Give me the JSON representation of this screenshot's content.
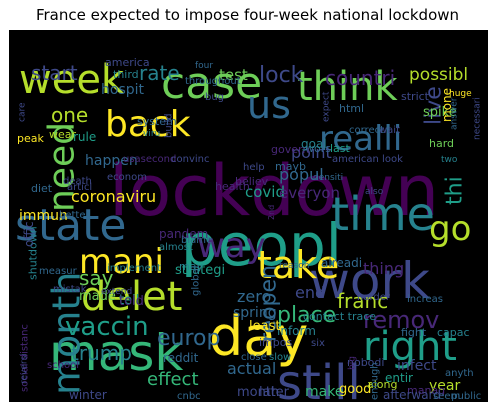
{
  "title": "France expected to impose four-week national lockdown",
  "colors": {
    "background": "#000000",
    "title_text": "#000000"
  },
  "words": [
    {
      "text": "lockdown",
      "color": "#440154"
    },
    {
      "text": "peopl",
      "color": "#1f9e89"
    },
    {
      "text": "day",
      "color": "#fde725"
    },
    {
      "text": "state",
      "color": "#31688e"
    },
    {
      "text": "week",
      "color": "#b5de2b"
    },
    {
      "text": "case",
      "color": "#6ece58"
    },
    {
      "text": "us",
      "color": "#31688e"
    },
    {
      "text": "mask",
      "color": "#35b779"
    },
    {
      "text": "work",
      "color": "#3e4989"
    },
    {
      "text": "time",
      "color": "#26828e"
    },
    {
      "text": "delet",
      "color": "#b5de2b"
    },
    {
      "text": "still",
      "color": "#3e4989"
    },
    {
      "text": "take",
      "color": "#fde725"
    },
    {
      "text": "back",
      "color": "#fde725"
    },
    {
      "text": "right",
      "color": "#1f9e89"
    },
    {
      "text": "mani",
      "color": "#fde725"
    },
    {
      "text": "way",
      "color": "#482878"
    },
    {
      "text": "month",
      "color": "#26828e"
    },
    {
      "text": "think",
      "color": "#6ece58"
    },
    {
      "text": "need",
      "color": "#6ece58"
    },
    {
      "text": "realli",
      "color": "#31688e"
    },
    {
      "text": "go",
      "color": "#b5de2b"
    },
    {
      "text": "vaccin",
      "color": "#1f9e89"
    },
    {
      "text": "remov",
      "color": "#482878"
    },
    {
      "text": "reopen",
      "color": "#31688e"
    },
    {
      "text": "trump",
      "color": "#26828e"
    },
    {
      "text": "europ",
      "color": "#31688e"
    },
    {
      "text": "say",
      "color": "#6ece58"
    },
    {
      "text": "place",
      "color": "#35b779"
    },
    {
      "text": "coronaviru",
      "color": "#fde725"
    },
    {
      "text": "lock",
      "color": "#3e4989"
    },
    {
      "text": "countri",
      "color": "#482878"
    },
    {
      "text": "start",
      "color": "#3e4989"
    },
    {
      "text": "rate",
      "color": "#26828e"
    },
    {
      "text": "test",
      "color": "#6ece58"
    },
    {
      "text": "possibl",
      "color": "#b5de2b"
    },
    {
      "text": "one",
      "color": "#b5de2b"
    },
    {
      "text": "thi",
      "color": "#1f9e89"
    },
    {
      "text": "live",
      "color": "#3e4989"
    },
    {
      "text": "effect",
      "color": "#35b779"
    },
    {
      "text": "point",
      "color": "#3e4989"
    },
    {
      "text": "popul",
      "color": "#31688e"
    },
    {
      "text": "covid",
      "color": "#1f9e89"
    },
    {
      "text": "everyon",
      "color": "#482878"
    },
    {
      "text": "zero",
      "color": "#31688e"
    },
    {
      "text": "end",
      "color": "#3e4989"
    },
    {
      "text": "franc",
      "color": "#b5de2b"
    },
    {
      "text": "thing",
      "color": "#482878"
    },
    {
      "text": "actual",
      "color": "#31688e"
    },
    {
      "text": "month",
      "color": "#3e4989"
    },
    {
      "text": "later",
      "color": "#3e4989"
    },
    {
      "text": "make",
      "color": "#35b779"
    },
    {
      "text": "infect",
      "color": "#3e4989"
    },
    {
      "text": "year",
      "color": "#b5de2b"
    },
    {
      "text": "good",
      "color": "#fde725"
    },
    {
      "text": "hospit",
      "color": "#31688e"
    },
    {
      "text": "america",
      "color": "#3e4989"
    },
    {
      "text": "happen",
      "color": "#31688e"
    },
    {
      "text": "made",
      "color": "#6ece58"
    },
    {
      "text": "tell",
      "color": "#1f9e89"
    },
    {
      "text": "told",
      "color": "#482878"
    },
    {
      "text": "winter",
      "color": "#3e4989"
    },
    {
      "text": "immun",
      "color": "#fde725"
    },
    {
      "text": "peak",
      "color": "#fde725"
    },
    {
      "text": "wear",
      "color": "#b5de2b"
    },
    {
      "text": "rule",
      "color": "#1f9e89"
    },
    {
      "text": "system",
      "color": "#31688e"
    },
    {
      "text": "third",
      "color": "#26828e"
    },
    {
      "text": "health",
      "color": "#482878"
    },
    {
      "text": "reddit",
      "color": "#31688e"
    },
    {
      "text": "inform",
      "color": "#26828e"
    },
    {
      "text": "least",
      "color": "#fde725"
    },
    {
      "text": "impos",
      "color": "#3e4989"
    },
    {
      "text": "contact trace",
      "color": "#26828e"
    },
    {
      "text": "entir",
      "color": "#1f9e89"
    },
    {
      "text": "spring",
      "color": "#31688e"
    },
    {
      "text": "strategi",
      "color": "#1f9e89"
    },
    {
      "text": "pandem",
      "color": "#482878"
    },
    {
      "text": "spike",
      "color": "#6ece58"
    },
    {
      "text": "strict",
      "color": "#3e4989"
    },
    {
      "text": "html",
      "color": "#31688e"
    },
    {
      "text": "diet",
      "color": "#31688e"
    },
    {
      "text": "may",
      "color": "#26828e"
    },
    {
      "text": "social distanc",
      "color": "#482878"
    },
    {
      "text": "shutdown",
      "color": "#26828e"
    },
    {
      "text": "offic",
      "color": "#3e4989"
    },
    {
      "text": "fight",
      "color": "#31688e"
    },
    {
      "text": "capac",
      "color": "#26828e"
    },
    {
      "text": "american look",
      "color": "#3e4989"
    },
    {
      "text": "wors",
      "color": "#31688e"
    },
    {
      "text": "last",
      "color": "#1f9e89"
    },
    {
      "text": "govern",
      "color": "#482878"
    },
    {
      "text": "goal",
      "color": "#26828e"
    },
    {
      "text": "help",
      "color": "#3e4989"
    },
    {
      "text": "mayb",
      "color": "#31688e"
    },
    {
      "text": "believ",
      "color": "#482878"
    },
    {
      "text": "blame",
      "color": "#31688e"
    },
    {
      "text": "almost",
      "color": "#26828e"
    },
    {
      "text": "global",
      "color": "#31688e"
    },
    {
      "text": "nobodi",
      "color": "#3e4989"
    },
    {
      "text": "along",
      "color": "#b5de2b"
    },
    {
      "text": "manag",
      "color": "#482878"
    },
    {
      "text": "afterward",
      "color": "#3e4989"
    },
    {
      "text": "close",
      "color": "#31688e"
    },
    {
      "text": "slow",
      "color": "#26828e"
    },
    {
      "text": "school",
      "color": "#482878"
    },
    {
      "text": "harder",
      "color": "#3e4989"
    },
    {
      "text": "increas",
      "color": "#31688e"
    },
    {
      "text": "correct",
      "color": "#31688e"
    },
    {
      "text": "wait",
      "color": "#3e4989"
    },
    {
      "text": "hard",
      "color": "#6ece58"
    },
    {
      "text": "mone",
      "color": "#fde725"
    },
    {
      "text": "throughout",
      "color": "#31688e"
    },
    {
      "text": "bug",
      "color": "#3e4989"
    },
    {
      "text": "four",
      "color": "#31688e"
    },
    {
      "text": "expect",
      "color": "#3e4989"
    },
    {
      "text": "implement",
      "color": "#26828e"
    },
    {
      "text": "better",
      "color": "#31688e"
    },
    {
      "text": "measur",
      "color": "#31688e"
    },
    {
      "text": "mistak",
      "color": "#3e4989"
    },
    {
      "text": "viru",
      "color": "#26828e"
    },
    {
      "text": "econom",
      "color": "#3e4989"
    },
    {
      "text": "usasecond",
      "color": "#482878"
    },
    {
      "text": "convinc",
      "color": "#3e4989"
    },
    {
      "text": "articl",
      "color": "#3e4989"
    },
    {
      "text": "death",
      "color": "#3e4989"
    },
    {
      "text": "build",
      "color": "#3e4989"
    },
    {
      "text": "reason",
      "color": "#31688e"
    },
    {
      "text": "alreadi",
      "color": "#31688e"
    },
    {
      "text": "anyth",
      "color": "#31688e"
    },
    {
      "text": "seem",
      "color": "#31688e"
    },
    {
      "text": "public",
      "color": "#31688e"
    },
    {
      "text": "huge",
      "color": "#fde725"
    },
    {
      "text": "necessari",
      "color": "#3e4989"
    },
    {
      "text": "answer",
      "color": "#31688e"
    },
    {
      "text": "two",
      "color": "#26828e"
    },
    {
      "text": "enough",
      "color": "#31688e"
    },
    {
      "text": "six",
      "color": "#3e4989"
    },
    {
      "text": "cnbc",
      "color": "#31688e"
    },
    {
      "text": "care",
      "color": "#3e4989"
    },
    {
      "text": "densiti",
      "color": "#31688e"
    },
    {
      "text": "also",
      "color": "#3e4989"
    },
    {
      "text": "2nd",
      "color": "#482878"
    },
    {
      "text": "big",
      "color": "#482878"
    },
    {
      "text": "reversi",
      "color": "#3e4989"
    },
    {
      "text": "extend",
      "color": "#3e4989"
    }
  ]
}
